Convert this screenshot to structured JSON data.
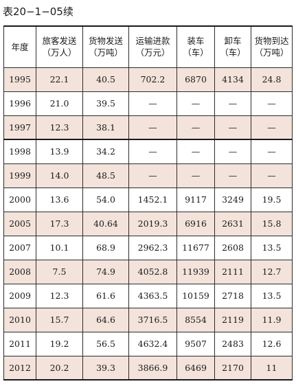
{
  "caption": "表20−1−05续",
  "table": {
    "headers": [
      {
        "line1": "年度",
        "line2": ""
      },
      {
        "line1": "旅客发送",
        "line2": "（万人）"
      },
      {
        "line1": "货物发送",
        "line2": "（万吨）"
      },
      {
        "line1": "运输进款",
        "line2": "（万元）"
      },
      {
        "line1": "装车",
        "line2": "（车）"
      },
      {
        "line1": "卸车",
        "line2": "（车）"
      },
      {
        "line1": "货物到达",
        "line2": "（万吨）"
      }
    ],
    "rows": [
      [
        "1995",
        "22.1",
        "40.5",
        "702.2",
        "6870",
        "4134",
        "24.8"
      ],
      [
        "1996",
        "21.0",
        "39.5",
        "—",
        "—",
        "—",
        "—"
      ],
      [
        "1997",
        "12.3",
        "38.1",
        "—",
        "—",
        "—",
        "—"
      ],
      [
        "1998",
        "13.9",
        "34.2",
        "—",
        "—",
        "—",
        "—"
      ],
      [
        "1999",
        "14.0",
        "48.5",
        "—",
        "—",
        "—",
        "—"
      ],
      [
        "2000",
        "13.6",
        "54.0",
        "1452.1",
        "9117",
        "3249",
        "19.5"
      ],
      [
        "2005",
        "17.3",
        "40.64",
        "2019.3",
        "6916",
        "2631",
        "15.8"
      ],
      [
        "2007",
        "10.1",
        "68.9",
        "2962.3",
        "11677",
        "2608",
        "13.5"
      ],
      [
        "2008",
        "7.5",
        "74.9",
        "4052.8",
        "11939",
        "2111",
        "12.7"
      ],
      [
        "2009",
        "12.3",
        "61.6",
        "4363.5",
        "10159",
        "2718",
        "13.5"
      ],
      [
        "2010",
        "15.7",
        "64.6",
        "3716.5",
        "8554",
        "2119",
        "11.9"
      ],
      [
        "2011",
        "19.2",
        "56.5",
        "4632.4",
        "9507",
        "2483",
        "12.6"
      ],
      [
        "2012",
        "20.2",
        "39.3",
        "3866.9",
        "6469",
        "2170",
        "11"
      ]
    ]
  },
  "colors": {
    "shaded_row": "#f3e3da",
    "rule": "#1a1a1a"
  }
}
